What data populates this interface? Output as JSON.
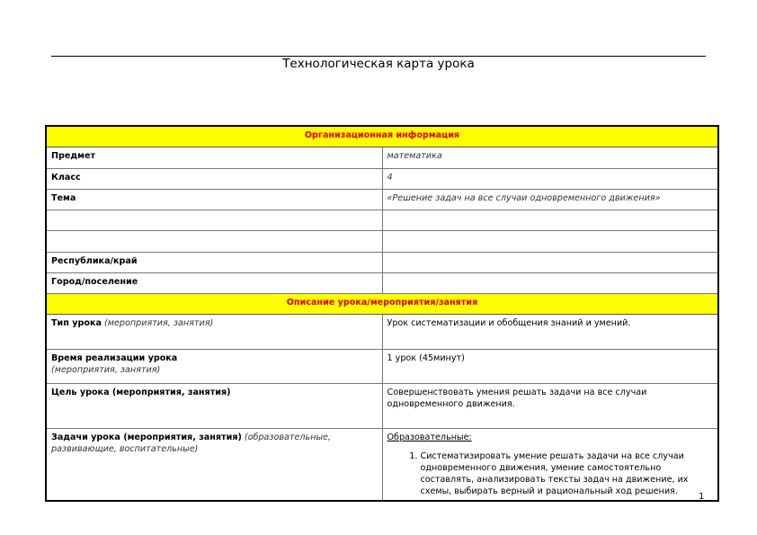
{
  "title": "Технологическая карта урока",
  "sections": {
    "org": "Организационная информация",
    "desc": "Описание урока/мероприятия/занятия"
  },
  "org_rows": [
    {
      "label": "Предмет",
      "value": "математика"
    },
    {
      "label": "Класс",
      "value": "4"
    },
    {
      "label": "Тема",
      "value": "«Решение задач на все случаи одновременного движения»"
    },
    {
      "label": "",
      "value": ""
    },
    {
      "label": "",
      "value": ""
    },
    {
      "label": "Республика/край",
      "value": ""
    },
    {
      "label": "Город/поселение",
      "value": ""
    }
  ],
  "desc_rows": {
    "type": {
      "label": "Тип урока",
      "label_note": "(мероприятия, занятия)",
      "value": "Урок систематизации и обобщения знаний и умений."
    },
    "time": {
      "label": "Время реализации урока",
      "label_note": "(мероприятия, занятия)",
      "value": "1 урок (45минут)"
    },
    "goal": {
      "label": "Цель урока (мероприятия, занятия)",
      "value": "Совершенствовать умения решать задачи на все случаи одновременного  движения."
    },
    "tasks": {
      "label": "Задачи урока (мероприятия, занятия)",
      "label_note": "(образовательные, развивающие, воспитательные)",
      "subheading": "Образовательные:",
      "items": [
        "Систематизировать умение решать задачи на все случаи одновременного движения, умение самостоятельно составлять, анализировать тексты задач на движение, их схемы,  выбирать верный и рациональный  ход решения."
      ]
    }
  },
  "page_number": "1"
}
